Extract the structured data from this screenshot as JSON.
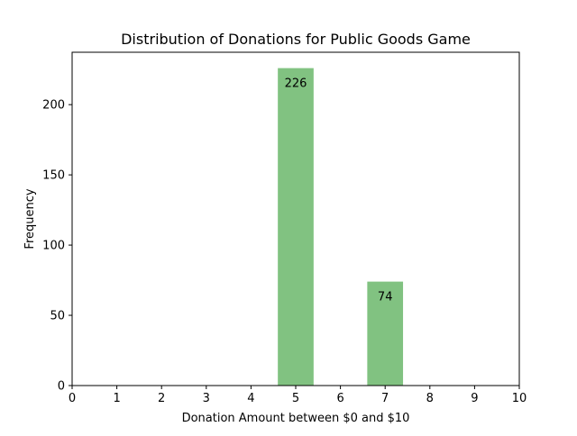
{
  "chart_data": {
    "type": "bar",
    "title": "Distribution of Donations for Public Goods Game",
    "xlabel": "Donation Amount between $0 and $10",
    "ylabel": "Frequency",
    "xlim": [
      0,
      10
    ],
    "ylim": [
      0,
      237.3
    ],
    "x_ticks": [
      0,
      1,
      2,
      3,
      4,
      5,
      6,
      7,
      8,
      9,
      10
    ],
    "y_ticks": [
      0,
      50,
      100,
      150,
      200
    ],
    "bar_width": 0.8,
    "bars": [
      {
        "x": 5,
        "value": 226,
        "label": "226"
      },
      {
        "x": 7,
        "value": 74,
        "label": "74"
      }
    ],
    "grid": false,
    "legend": "none",
    "bar_color": "#81c281"
  }
}
